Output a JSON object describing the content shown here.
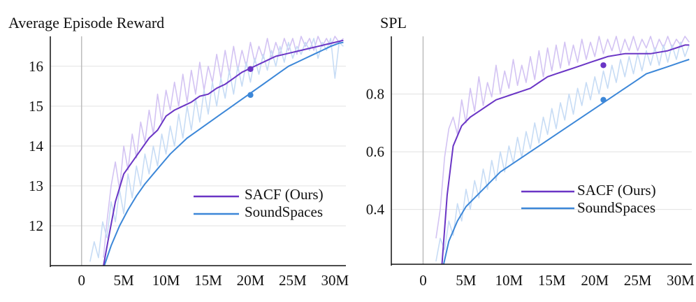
{
  "colors": {
    "sacf": "#6a35c5",
    "soundspaces": "#3c87d8",
    "sacf_raw": "#d3c3f3",
    "ss_raw": "#c7dcf5",
    "grid": "#e2e2e2",
    "zero": "#bcbcbc",
    "axis": "#111111"
  },
  "chart_data": [
    {
      "type": "line",
      "title": "Average Episode Reward",
      "xlabel": "",
      "ylabel": "",
      "x_ticks": [
        "0",
        "5M",
        "10M",
        "15M",
        "20M",
        "25M",
        "30M"
      ],
      "x_tick_values": [
        0,
        5,
        10,
        15,
        20,
        25,
        30
      ],
      "y_ticks": [
        "12",
        "13",
        "14",
        "15",
        "16"
      ],
      "y_tick_values": [
        12,
        13,
        14,
        15,
        16
      ],
      "xlim": [
        -3.7,
        31.3
      ],
      "ylim": [
        11.0,
        16.75
      ],
      "grid": true,
      "legend": "lower-right",
      "series": [
        {
          "name": "SACF (Ours)",
          "x": [
            2.6,
            3.2,
            4.0,
            5.0,
            6.0,
            7.0,
            8.0,
            9.0,
            10.0,
            11.0,
            12.0,
            13.0,
            14.0,
            15.0,
            16.0,
            17.0,
            18.0,
            19.0,
            20.0,
            21.0,
            22.0,
            23.0,
            24.0,
            25.0,
            26.0,
            27.0,
            28.0,
            29.0,
            30.0,
            31.0
          ],
          "values": [
            11.0,
            11.7,
            12.6,
            13.3,
            13.6,
            13.9,
            14.2,
            14.4,
            14.75,
            14.9,
            15.0,
            15.1,
            15.25,
            15.3,
            15.45,
            15.55,
            15.7,
            15.85,
            15.95,
            16.05,
            16.15,
            16.25,
            16.3,
            16.35,
            16.4,
            16.45,
            16.5,
            16.55,
            16.6,
            16.65
          ],
          "raw_x": [
            2.6,
            3.0,
            3.5,
            4.0,
            4.5,
            5.0,
            5.5,
            6.0,
            6.5,
            7.0,
            7.5,
            8.0,
            8.5,
            9.0,
            9.5,
            10.0,
            10.5,
            11.0,
            11.5,
            12.0,
            12.5,
            13.0,
            13.5,
            14.0,
            14.5,
            15.0,
            15.5,
            16.0,
            16.5,
            17.0,
            17.5,
            18.0,
            18.5,
            19.0,
            19.5,
            20.0,
            20.5,
            21.0,
            21.5,
            22.0,
            22.5,
            23.0,
            23.5,
            24.0,
            24.5,
            25.0,
            25.5,
            26.0,
            26.5,
            27.0,
            27.5,
            28.0,
            28.5,
            29.0,
            29.5,
            30.0,
            30.5,
            31.0
          ],
          "raw_values": [
            11.2,
            12.1,
            13.0,
            13.6,
            12.9,
            14.0,
            13.4,
            14.3,
            13.7,
            14.6,
            14.1,
            14.9,
            14.3,
            15.3,
            14.6,
            15.4,
            14.9,
            15.6,
            15.0,
            15.8,
            15.1,
            15.9,
            15.3,
            16.1,
            15.4,
            16.0,
            15.6,
            16.3,
            15.7,
            16.4,
            15.8,
            16.5,
            15.9,
            16.4,
            16.0,
            16.6,
            16.1,
            16.5,
            16.2,
            16.7,
            16.2,
            16.6,
            16.3,
            16.7,
            16.4,
            16.7,
            16.3,
            16.75,
            16.5,
            16.7,
            16.4,
            16.75,
            16.5,
            16.7,
            16.5,
            16.75,
            16.6,
            16.7
          ],
          "marker": {
            "x": 20.0,
            "y": 15.93
          }
        },
        {
          "name": "SoundSpaces",
          "x": [
            2.7,
            3.5,
            4.5,
            5.5,
            6.5,
            7.5,
            8.5,
            9.5,
            10.5,
            11.5,
            12.5,
            13.5,
            14.5,
            15.5,
            16.5,
            17.5,
            18.5,
            19.5,
            20.5,
            21.5,
            22.5,
            23.5,
            24.5,
            25.5,
            26.5,
            27.5,
            28.5,
            29.5,
            30.5,
            31.0
          ],
          "values": [
            11.0,
            11.5,
            12.0,
            12.4,
            12.75,
            13.05,
            13.3,
            13.55,
            13.8,
            14.0,
            14.2,
            14.35,
            14.5,
            14.65,
            14.8,
            14.95,
            15.1,
            15.25,
            15.4,
            15.55,
            15.7,
            15.85,
            16.0,
            16.1,
            16.2,
            16.3,
            16.4,
            16.5,
            16.58,
            16.6
          ],
          "raw_x": [
            1.0,
            1.5,
            2.0,
            2.5,
            3.0,
            3.5,
            4.0,
            4.5,
            5.0,
            5.5,
            6.0,
            6.5,
            7.0,
            7.5,
            8.0,
            8.5,
            9.0,
            9.5,
            10.0,
            10.5,
            11.0,
            11.5,
            12.0,
            12.5,
            13.0,
            13.5,
            14.0,
            14.5,
            15.0,
            15.5,
            16.0,
            16.5,
            17.0,
            17.5,
            18.0,
            18.5,
            19.0,
            19.5,
            20.0,
            20.5,
            21.0,
            21.5,
            22.0,
            22.5,
            23.0,
            23.5,
            24.0,
            24.5,
            25.0,
            25.5,
            26.0,
            26.5,
            27.0,
            27.5,
            28.0,
            28.5,
            29.0,
            29.5,
            30.0,
            30.5,
            31.0
          ],
          "raw_values": [
            11.1,
            11.6,
            11.2,
            12.1,
            11.7,
            12.6,
            12.1,
            12.9,
            12.3,
            13.3,
            12.7,
            13.5,
            13.0,
            13.8,
            13.3,
            14.0,
            13.5,
            14.3,
            13.8,
            14.5,
            14.0,
            14.8,
            14.2,
            15.0,
            14.4,
            15.2,
            14.6,
            15.4,
            14.8,
            15.6,
            15.0,
            15.7,
            15.2,
            15.9,
            15.3,
            16.0,
            15.5,
            16.1,
            15.6,
            16.2,
            15.8,
            16.3,
            15.9,
            16.4,
            16.0,
            16.5,
            16.1,
            16.6,
            16.2,
            16.5,
            16.3,
            16.6,
            16.4,
            16.7,
            16.2,
            16.6,
            16.4,
            16.7,
            15.7,
            16.6,
            16.5
          ],
          "marker": {
            "x": 20.0,
            "y": 15.28
          }
        }
      ]
    },
    {
      "type": "line",
      "title": "SPL",
      "xlabel": "",
      "ylabel": "",
      "x_ticks": [
        "0",
        "5M",
        "10M",
        "15M",
        "20M",
        "25M",
        "30M"
      ],
      "x_tick_values": [
        0,
        5,
        10,
        15,
        20,
        25,
        30
      ],
      "y_ticks": [
        "0.4",
        "0.6",
        "0.8"
      ],
      "y_tick_values": [
        0.4,
        0.6,
        0.8
      ],
      "xlim": [
        -3.7,
        31.3
      ],
      "ylim": [
        0.21,
        1.0
      ],
      "grid": true,
      "legend": "lower-right",
      "series": [
        {
          "name": "SACF (Ours)",
          "x": [
            2.2,
            2.8,
            3.5,
            4.5,
            5.5,
            6.5,
            7.5,
            8.5,
            9.5,
            10.5,
            11.5,
            12.5,
            13.5,
            14.5,
            15.5,
            16.5,
            17.5,
            18.5,
            19.5,
            20.5,
            21.5,
            22.5,
            23.5,
            24.5,
            25.5,
            26.5,
            27.5,
            28.5,
            29.5,
            30.5,
            31.0
          ],
          "values": [
            0.21,
            0.45,
            0.62,
            0.69,
            0.72,
            0.74,
            0.76,
            0.78,
            0.79,
            0.8,
            0.81,
            0.82,
            0.84,
            0.86,
            0.87,
            0.88,
            0.89,
            0.9,
            0.91,
            0.92,
            0.93,
            0.935,
            0.94,
            0.94,
            0.94,
            0.94,
            0.945,
            0.95,
            0.96,
            0.97,
            0.97
          ],
          "raw_x": [
            1.5,
            2.0,
            2.5,
            3.0,
            3.5,
            4.0,
            4.5,
            5.0,
            5.5,
            6.0,
            6.5,
            7.0,
            7.5,
            8.0,
            8.5,
            9.0,
            9.5,
            10.0,
            10.5,
            11.0,
            11.5,
            12.0,
            12.5,
            13.0,
            13.5,
            14.0,
            14.5,
            15.0,
            15.5,
            16.0,
            16.5,
            17.0,
            17.5,
            18.0,
            18.5,
            19.0,
            19.5,
            20.0,
            20.5,
            21.0,
            21.5,
            22.0,
            22.5,
            23.0,
            23.5,
            24.0,
            24.5,
            25.0,
            25.5,
            26.0,
            26.5,
            27.0,
            27.5,
            28.0,
            28.5,
            29.0,
            29.5,
            30.0,
            30.5,
            31.0
          ],
          "raw_values": [
            0.3,
            0.4,
            0.58,
            0.68,
            0.72,
            0.66,
            0.78,
            0.7,
            0.82,
            0.74,
            0.86,
            0.76,
            0.84,
            0.79,
            0.9,
            0.8,
            0.88,
            0.82,
            0.92,
            0.83,
            0.9,
            0.84,
            0.93,
            0.85,
            0.95,
            0.86,
            0.96,
            0.88,
            0.97,
            0.89,
            0.98,
            0.9,
            0.97,
            0.91,
            0.99,
            0.92,
            0.98,
            0.93,
            1.0,
            0.94,
            0.99,
            0.95,
            1.0,
            0.94,
            0.99,
            0.95,
            1.0,
            0.95,
            0.99,
            0.96,
            1.0,
            0.95,
            0.99,
            0.96,
            1.0,
            0.96,
            0.99,
            0.97,
            1.0,
            0.98
          ],
          "marker": {
            "x": 21.0,
            "y": 0.9
          }
        },
        {
          "name": "SoundSpaces",
          "x": [
            2.4,
            3.0,
            4.0,
            5.0,
            6.0,
            7.0,
            8.0,
            9.0,
            10.0,
            11.0,
            12.0,
            13.0,
            14.0,
            15.0,
            16.0,
            17.0,
            18.0,
            19.0,
            20.0,
            21.0,
            22.0,
            23.0,
            24.0,
            25.0,
            26.0,
            27.0,
            28.0,
            29.0,
            30.0,
            31.0
          ],
          "values": [
            0.21,
            0.29,
            0.36,
            0.41,
            0.44,
            0.47,
            0.5,
            0.53,
            0.55,
            0.57,
            0.59,
            0.61,
            0.63,
            0.65,
            0.67,
            0.69,
            0.71,
            0.73,
            0.75,
            0.77,
            0.79,
            0.81,
            0.83,
            0.85,
            0.87,
            0.88,
            0.89,
            0.9,
            0.91,
            0.92
          ],
          "raw_x": [
            1.5,
            2.0,
            2.5,
            3.0,
            3.5,
            4.0,
            4.5,
            5.0,
            5.5,
            6.0,
            6.5,
            7.0,
            7.5,
            8.0,
            8.5,
            9.0,
            9.5,
            10.0,
            10.5,
            11.0,
            11.5,
            12.0,
            12.5,
            13.0,
            13.5,
            14.0,
            14.5,
            15.0,
            15.5,
            16.0,
            16.5,
            17.0,
            17.5,
            18.0,
            18.5,
            19.0,
            19.5,
            20.0,
            20.5,
            21.0,
            21.5,
            22.0,
            22.5,
            23.0,
            23.5,
            24.0,
            24.5,
            25.0,
            25.5,
            26.0,
            26.5,
            27.0,
            27.5,
            28.0,
            28.5,
            29.0,
            29.5,
            30.0,
            30.5,
            31.0
          ],
          "raw_values": [
            0.22,
            0.3,
            0.26,
            0.36,
            0.31,
            0.42,
            0.36,
            0.47,
            0.4,
            0.5,
            0.44,
            0.54,
            0.47,
            0.57,
            0.5,
            0.6,
            0.53,
            0.62,
            0.56,
            0.65,
            0.58,
            0.67,
            0.61,
            0.7,
            0.63,
            0.72,
            0.66,
            0.75,
            0.68,
            0.77,
            0.71,
            0.8,
            0.73,
            0.82,
            0.76,
            0.84,
            0.78,
            0.86,
            0.8,
            0.88,
            0.82,
            0.9,
            0.84,
            0.92,
            0.86,
            0.93,
            0.87,
            0.94,
            0.88,
            0.95,
            0.9,
            0.96,
            0.9,
            0.97,
            0.91,
            0.97,
            0.92,
            0.98,
            0.93,
            0.97
          ],
          "marker": {
            "x": 21.0,
            "y": 0.78
          }
        }
      ]
    }
  ]
}
